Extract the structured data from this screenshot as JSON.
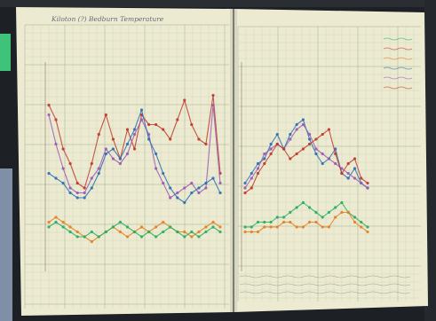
{
  "photo": {
    "background_color": "#1d2126",
    "paper_color": "#ecebd2",
    "grid_color": "#9fb08f",
    "green_tab_color": "#3fc27a"
  },
  "handwriting": {
    "left_page_title": "Kiloton (?) Bedburn Temperature",
    "right_page_footer_note": "",
    "note_status": "handwritten text is illegible in the photo"
  },
  "chart_data": [
    {
      "type": "line",
      "title": "",
      "xlabel": "",
      "ylabel": "",
      "grid": true,
      "x": [
        1,
        2,
        3,
        4,
        5,
        6,
        7,
        8,
        9,
        10,
        11,
        12,
        13,
        14,
        15,
        16,
        17,
        18,
        19,
        20,
        21,
        22,
        23,
        24,
        25
      ],
      "ylim": [
        0,
        20
      ],
      "series": [
        {
          "color": "#c0392b",
          "values": [
            16.5,
            15.0,
            12.0,
            10.5,
            8.5,
            8.0,
            10.5,
            13.5,
            15.5,
            13.0,
            11.0,
            14.0,
            12.0,
            15.5,
            14.5,
            14.5,
            14.0,
            13.0,
            15.0,
            17.0,
            14.5,
            13.0,
            12.5,
            17.5,
            9.5
          ]
        },
        {
          "color": "#9b59b6",
          "values": [
            15.5,
            12.5,
            10.0,
            8.0,
            7.5,
            7.5,
            9.0,
            10.0,
            12.0,
            11.0,
            10.5,
            11.5,
            13.5,
            15.0,
            13.5,
            10.0,
            8.5,
            7.0,
            7.5,
            8.0,
            8.5,
            7.5,
            8.0,
            16.5,
            8.5
          ]
        },
        {
          "color": "#2c6fb5",
          "values": [
            9.5,
            9.0,
            8.5,
            7.5,
            7.0,
            7.0,
            8.0,
            9.5,
            11.5,
            12.0,
            11.0,
            12.5,
            14.0,
            16.0,
            13.0,
            11.5,
            9.5,
            8.0,
            7.0,
            6.5,
            7.5,
            8.0,
            8.5,
            9.0,
            7.5
          ]
        },
        {
          "color": "#e67e22",
          "values": [
            4.5,
            5.0,
            4.5,
            4.0,
            3.5,
            3.0,
            2.5,
            3.0,
            3.5,
            4.0,
            3.5,
            3.0,
            3.5,
            4.0,
            3.5,
            4.0,
            4.5,
            4.0,
            3.5,
            3.5,
            3.0,
            3.5,
            4.0,
            4.5,
            4.0
          ]
        },
        {
          "color": "#27ae60",
          "values": [
            4.0,
            4.5,
            4.0,
            3.5,
            3.0,
            3.0,
            3.5,
            3.0,
            3.5,
            4.0,
            4.5,
            4.0,
            3.5,
            3.0,
            3.5,
            3.0,
            3.5,
            4.0,
            3.5,
            3.0,
            3.5,
            3.0,
            3.5,
            4.0,
            3.5
          ]
        }
      ]
    },
    {
      "type": "line",
      "title": "",
      "xlabel": "",
      "ylabel": "",
      "grid": true,
      "x": [
        1,
        2,
        3,
        4,
        5,
        6,
        7,
        8,
        9,
        10,
        11,
        12,
        13,
        14,
        15,
        16,
        17,
        18,
        19,
        20
      ],
      "ylim": [
        0,
        20
      ],
      "series": [
        {
          "color": "#2c6fb5",
          "values": [
            8.5,
            9.5,
            10.5,
            11.0,
            12.5,
            13.5,
            12.0,
            13.5,
            14.5,
            15.0,
            13.0,
            11.5,
            10.5,
            11.0,
            12.0,
            9.5,
            9.0,
            10.0,
            8.5,
            8.0
          ]
        },
        {
          "color": "#9b59b6",
          "values": [
            8.0,
            9.0,
            10.0,
            11.5,
            12.0,
            12.5,
            12.0,
            13.0,
            14.0,
            14.5,
            13.5,
            12.0,
            11.5,
            11.0,
            10.5,
            10.0,
            9.5,
            9.0,
            8.5,
            8.0
          ]
        },
        {
          "color": "#c0392b",
          "values": [
            7.5,
            8.0,
            9.5,
            10.5,
            11.5,
            12.5,
            12.0,
            11.0,
            11.5,
            12.0,
            12.5,
            13.0,
            13.5,
            14.0,
            11.5,
            9.5,
            10.5,
            11.0,
            9.0,
            8.5
          ]
        },
        {
          "color": "#27ae60",
          "values": [
            4.0,
            4.0,
            4.5,
            4.5,
            4.5,
            5.0,
            5.0,
            5.5,
            6.0,
            6.5,
            6.0,
            5.5,
            5.0,
            5.5,
            6.0,
            6.5,
            5.5,
            5.0,
            4.5,
            4.0
          ]
        },
        {
          "color": "#e67e22",
          "values": [
            3.5,
            3.5,
            3.5,
            4.0,
            4.0,
            4.0,
            4.5,
            4.5,
            4.0,
            4.0,
            4.5,
            4.5,
            4.0,
            4.0,
            5.0,
            5.5,
            5.5,
            4.5,
            4.0,
            3.5
          ]
        }
      ]
    }
  ]
}
